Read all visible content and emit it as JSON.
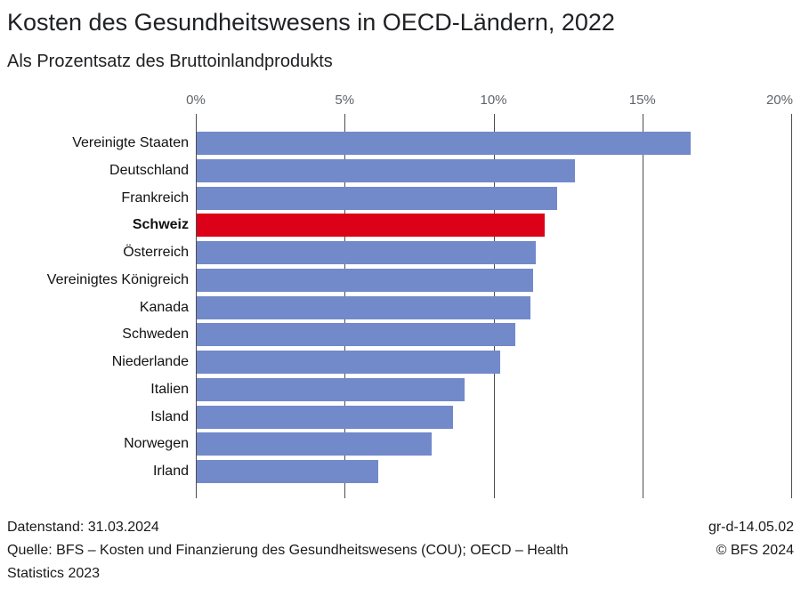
{
  "header": {
    "title": "Kosten des Gesundheitswesens in OECD-Ländern, 2022",
    "subtitle": "Als Prozentsatz des Bruttoinlandprodukts"
  },
  "chart_data": {
    "type": "bar",
    "orientation": "horizontal",
    "title": "Kosten des Gesundheitswesens in OECD-Ländern, 2022",
    "subtitle": "Als Prozentsatz des Bruttoinlandprodukts",
    "categories": [
      "Vereinigte Staaten",
      "Deutschland",
      "Frankreich",
      "Schweiz",
      "Österreich",
      "Vereinigtes Königreich",
      "Kanada",
      "Schweden",
      "Niederlande",
      "Italien",
      "Island",
      "Norwegen",
      "Irland"
    ],
    "values": [
      16.6,
      12.7,
      12.1,
      11.7,
      11.4,
      11.3,
      11.2,
      10.7,
      10.2,
      9.0,
      8.6,
      7.9,
      6.1
    ],
    "unit": "% des BIP",
    "highlight_category": "Schweiz",
    "xlim": [
      0,
      20
    ],
    "x_tick_values": [
      0,
      5,
      10,
      15,
      20
    ],
    "x_tick_labels": [
      "0%",
      "5%",
      "10%",
      "15%",
      "20%"
    ],
    "grid": "vertical",
    "legend": "none",
    "bar_color": "#7289CA",
    "highlight_color": "#DC0018",
    "gridline_color": "#4d4d4d",
    "axis_label_color": "#5f6368"
  },
  "footer": {
    "data_status": "Datenstand: 31.03.2024",
    "source_lines": [
      "Quelle: BFS – Kosten und Finanzierung des Gesundheitswesens (COU); OECD – Health",
      "Statistics 2023"
    ],
    "chart_code": "gr-d-14.05.02",
    "copyright": "© BFS 2024"
  }
}
